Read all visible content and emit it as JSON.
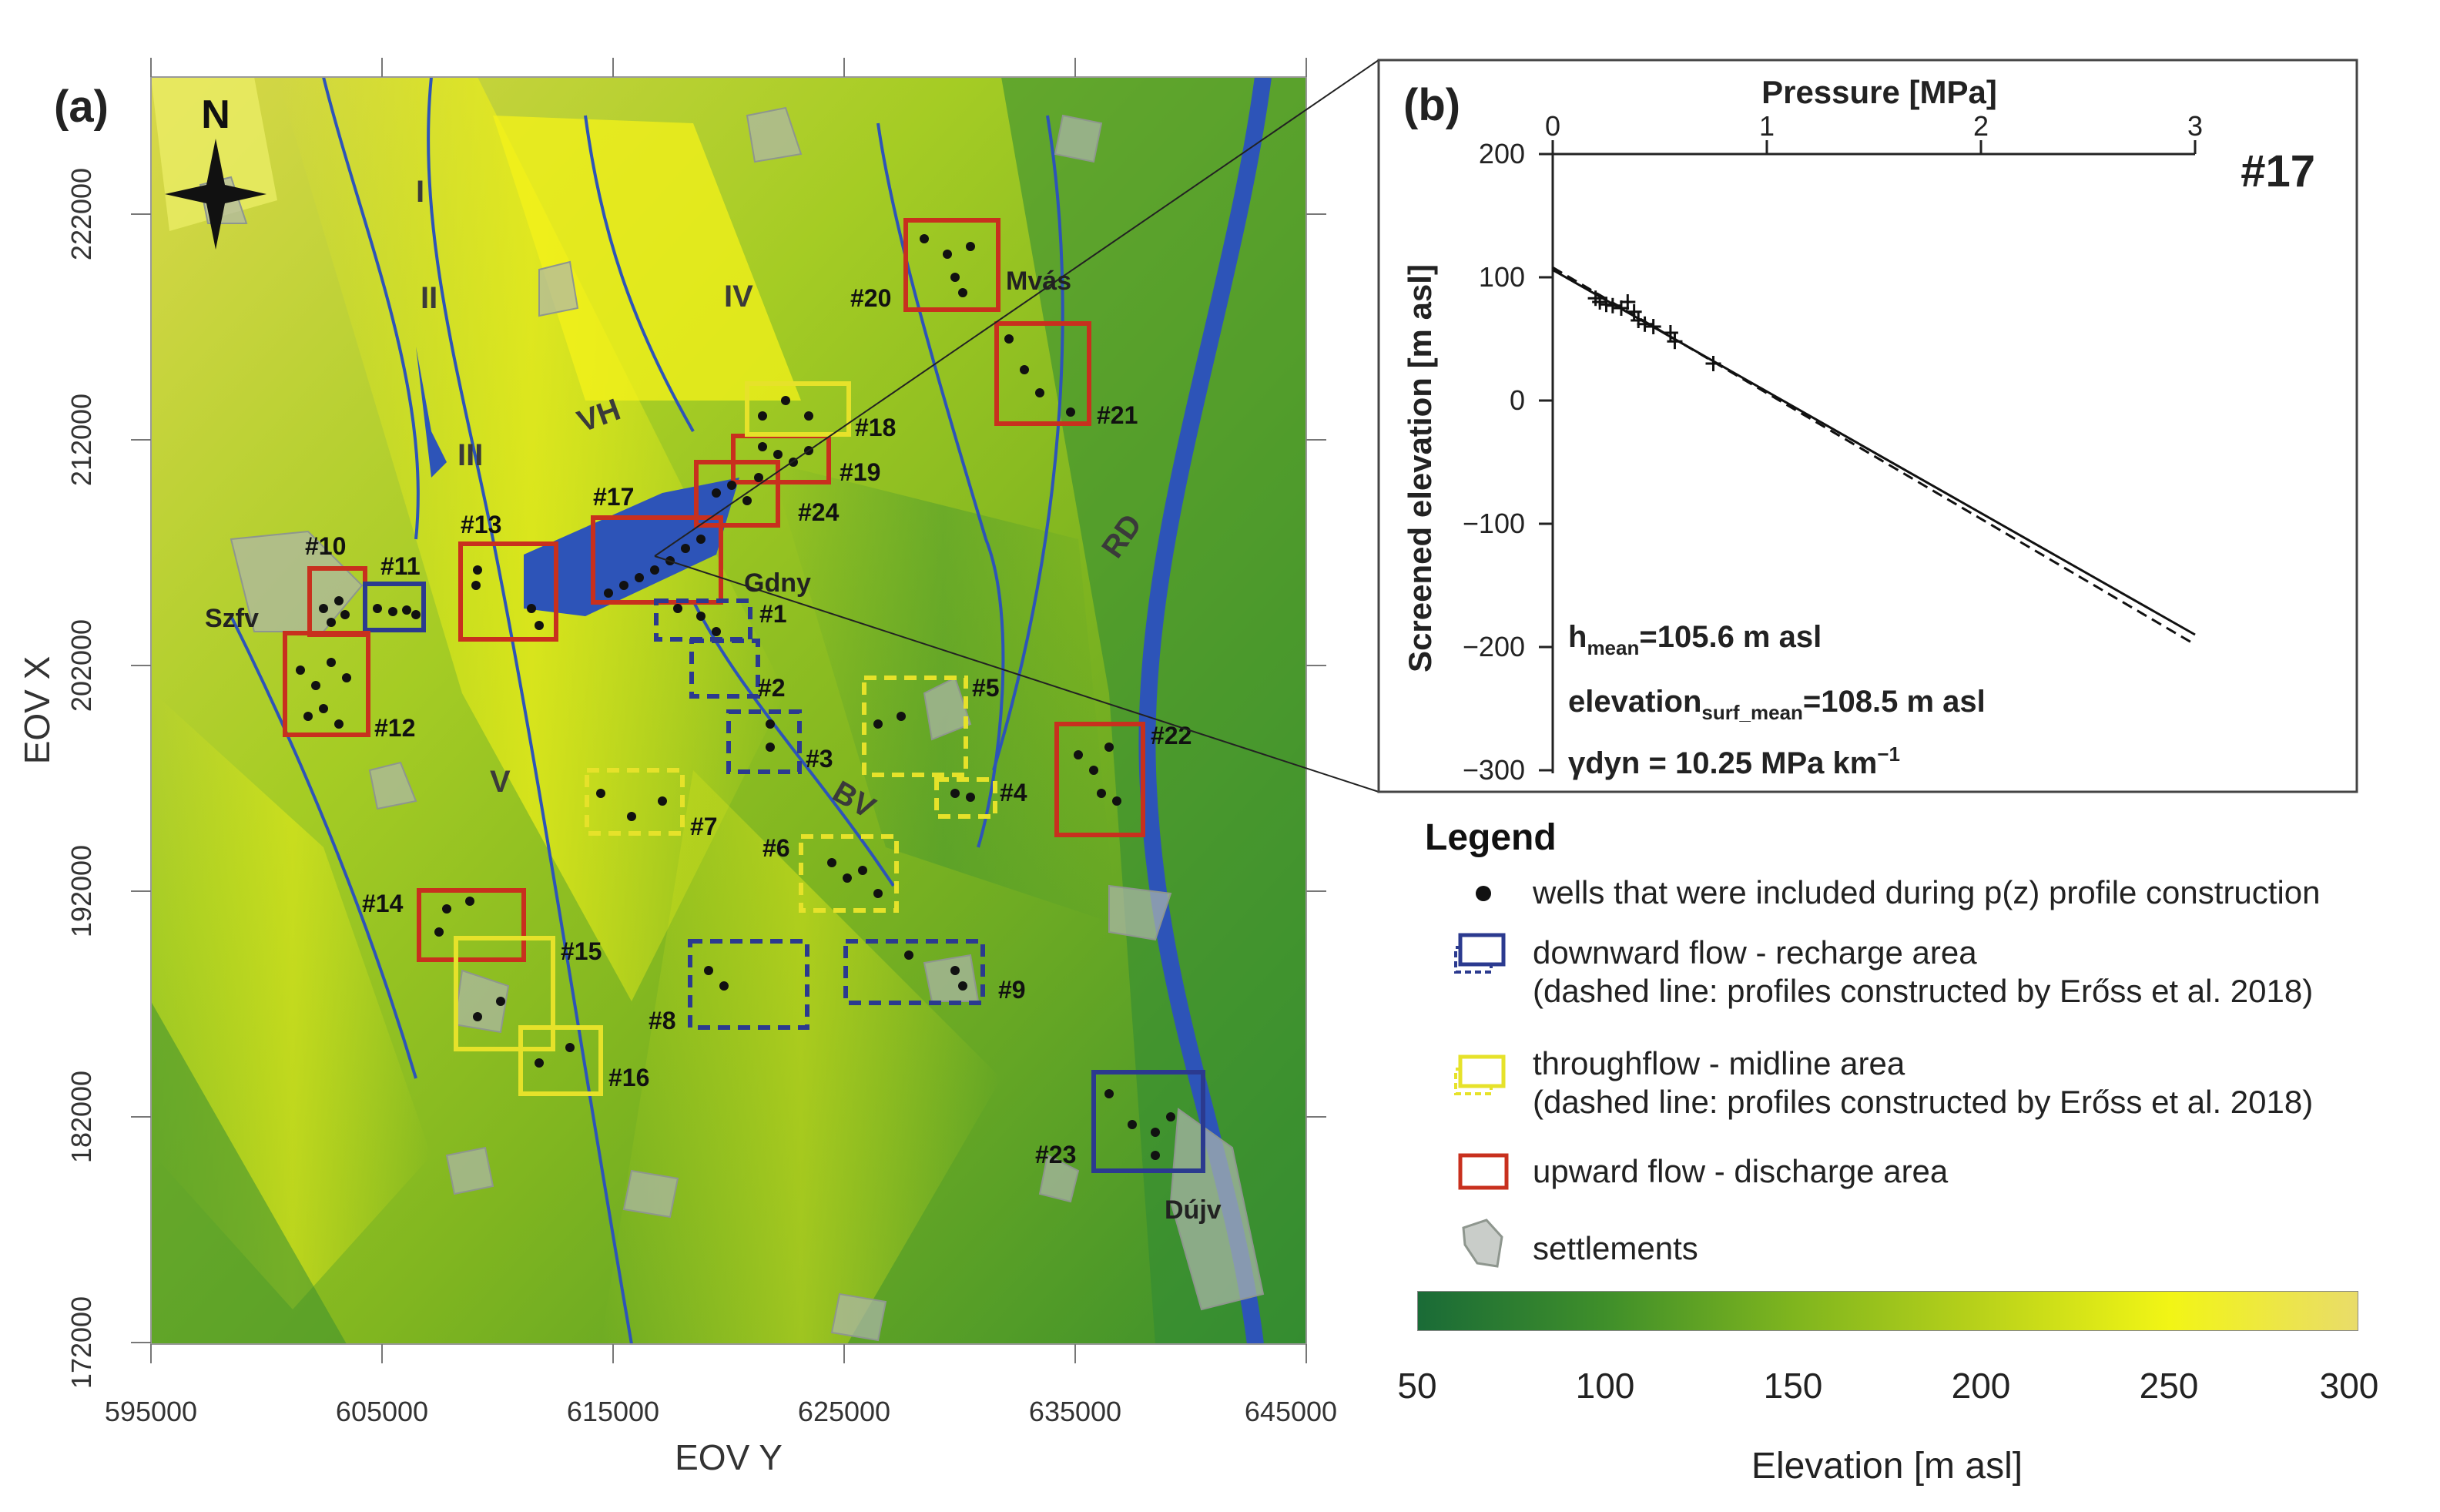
{
  "panel_a": {
    "label": "(a)",
    "north": "N",
    "x_axis_label": "EOV Y",
    "y_axis_label": "EOV X",
    "x_ticks": [
      "595000",
      "605000",
      "615000",
      "625000",
      "635000",
      "645000"
    ],
    "y_ticks": [
      "222000",
      "212000",
      "202000",
      "192000",
      "182000",
      "172000"
    ],
    "region_labels": [
      "I",
      "II",
      "III",
      "IV",
      "V",
      "VH",
      "BV",
      "RD"
    ],
    "towns": [
      "Szfv",
      "Gdny",
      "Mvás",
      "Dújv"
    ],
    "boxes": [
      {
        "label": "#1",
        "kind": "downward",
        "dashed": true
      },
      {
        "label": "#2",
        "kind": "downward",
        "dashed": true
      },
      {
        "label": "#3",
        "kind": "downward",
        "dashed": true
      },
      {
        "label": "#4",
        "kind": "throughflow",
        "dashed": true
      },
      {
        "label": "#5",
        "kind": "throughflow",
        "dashed": true
      },
      {
        "label": "#6",
        "kind": "throughflow",
        "dashed": true
      },
      {
        "label": "#7",
        "kind": "throughflow",
        "dashed": true
      },
      {
        "label": "#8",
        "kind": "downward",
        "dashed": true
      },
      {
        "label": "#9",
        "kind": "downward",
        "dashed": true
      },
      {
        "label": "#10",
        "kind": "upward",
        "dashed": false
      },
      {
        "label": "#11",
        "kind": "downward",
        "dashed": false
      },
      {
        "label": "#12",
        "kind": "upward",
        "dashed": false
      },
      {
        "label": "#13",
        "kind": "upward",
        "dashed": false
      },
      {
        "label": "#14",
        "kind": "upward",
        "dashed": false
      },
      {
        "label": "#15",
        "kind": "throughflow",
        "dashed": false
      },
      {
        "label": "#16",
        "kind": "throughflow",
        "dashed": false
      },
      {
        "label": "#17",
        "kind": "upward",
        "dashed": false
      },
      {
        "label": "#18",
        "kind": "throughflow",
        "dashed": false
      },
      {
        "label": "#19",
        "kind": "upward",
        "dashed": false
      },
      {
        "label": "#20",
        "kind": "upward",
        "dashed": false
      },
      {
        "label": "#21",
        "kind": "upward",
        "dashed": false
      },
      {
        "label": "#22",
        "kind": "upward",
        "dashed": false
      },
      {
        "label": "#23",
        "kind": "downward",
        "dashed": false
      },
      {
        "label": "#24",
        "kind": "upward",
        "dashed": false
      }
    ]
  },
  "panel_b": {
    "label": "(b)",
    "id": "#17",
    "x_axis_label": "Pressure [MPa]",
    "y_axis_label": "Screened elevation [m asl]",
    "x_ticks": [
      "0",
      "1",
      "2",
      "3"
    ],
    "y_ticks": [
      "200",
      "100",
      "0",
      "−100",
      "−200",
      "−300"
    ],
    "h_mean_prefix": "h",
    "h_mean_sub": "mean",
    "h_mean_value": "=105.6 m asl",
    "elev_prefix": "elevation",
    "elev_sub": "surf_mean",
    "elev_value": "=108.5 m asl",
    "gamma_text": "γdyn = 10.25 MPa km",
    "gamma_sup": "−1"
  },
  "chart_data": {
    "type": "scatter",
    "xlabel": "Pressure [MPa]",
    "ylabel": "Screened elevation [m asl]",
    "xlim": [
      0,
      3
    ],
    "ylim": [
      -300,
      200
    ],
    "points": [
      {
        "x": 0.2,
        "y": 83
      },
      {
        "x": 0.22,
        "y": 80
      },
      {
        "x": 0.25,
        "y": 78
      },
      {
        "x": 0.28,
        "y": 77
      },
      {
        "x": 0.32,
        "y": 75
      },
      {
        "x": 0.35,
        "y": 80
      },
      {
        "x": 0.38,
        "y": 72
      },
      {
        "x": 0.4,
        "y": 65
      },
      {
        "x": 0.43,
        "y": 62
      },
      {
        "x": 0.47,
        "y": 60
      },
      {
        "x": 0.55,
        "y": 55
      },
      {
        "x": 0.57,
        "y": 48
      },
      {
        "x": 0.75,
        "y": 30
      }
    ],
    "fit_solid": [
      [
        0,
        106
      ],
      [
        3,
        -190
      ]
    ],
    "fit_dashed": [
      [
        0,
        108
      ],
      [
        3,
        -198
      ]
    ]
  },
  "legend": {
    "title": "Legend",
    "items": [
      {
        "text": "wells that were included during p(z) profile construction"
      },
      {
        "text": "downward flow - recharge area"
      },
      {
        "text": "(dashed line: profiles constructed by Erőss et al. 2018)"
      },
      {
        "text": "throughflow - midline area"
      },
      {
        "text": "(dashed line: profiles constructed by Erőss et al. 2018)"
      },
      {
        "text": "upward flow - discharge area"
      },
      {
        "text": "settlements"
      }
    ]
  },
  "colorbar": {
    "ticks": [
      "50",
      "100",
      "150",
      "200",
      "250",
      "300"
    ],
    "label": "Elevation [m asl]"
  },
  "colors": {
    "downward": "#2b3a8f",
    "throughflow": "#e6e22a",
    "upward": "#c8301e",
    "water": "#2d54b8"
  }
}
